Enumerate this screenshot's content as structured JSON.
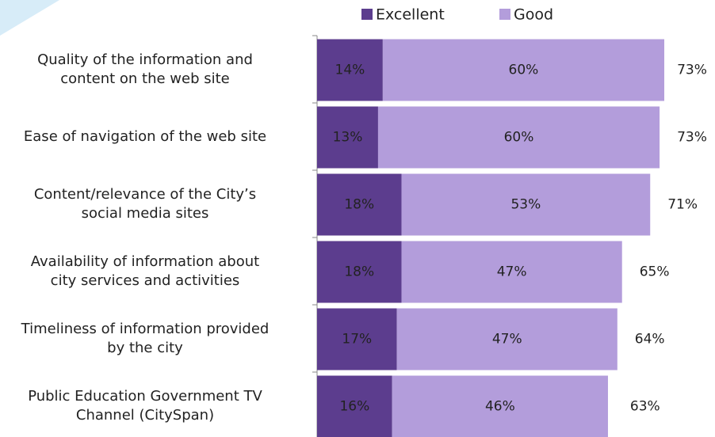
{
  "chart_data": {
    "type": "bar",
    "orientation": "horizontal",
    "stacked": true,
    "categories": [
      "Quality of the information and\ncontent on the web site",
      "Ease of navigation of the web site",
      "Content/relevance of the City’s\nsocial media sites",
      "Availability of information about\ncity services and activities",
      "Timeliness of information provided\nby the city",
      "Public Education Government TV\nChannel (CitySpan)"
    ],
    "series": [
      {
        "name": "Excellent",
        "color": "#5c3d8e",
        "values": [
          14,
          13,
          18,
          18,
          17,
          16
        ],
        "value_labels": [
          "14%",
          "13%",
          "18%",
          "18%",
          "17%",
          "16%"
        ]
      },
      {
        "name": "Good",
        "color": "#b39ddb",
        "values": [
          60,
          60,
          53,
          47,
          47,
          46
        ],
        "value_labels": [
          "60%",
          "60%",
          "53%",
          "47%",
          "47%",
          "46%"
        ]
      }
    ],
    "totals": [
      73,
      73,
      71,
      65,
      64,
      63
    ],
    "total_labels": [
      "73%",
      "73%",
      "71%",
      "65%",
      "64%",
      "63%"
    ],
    "legend": "top"
  }
}
